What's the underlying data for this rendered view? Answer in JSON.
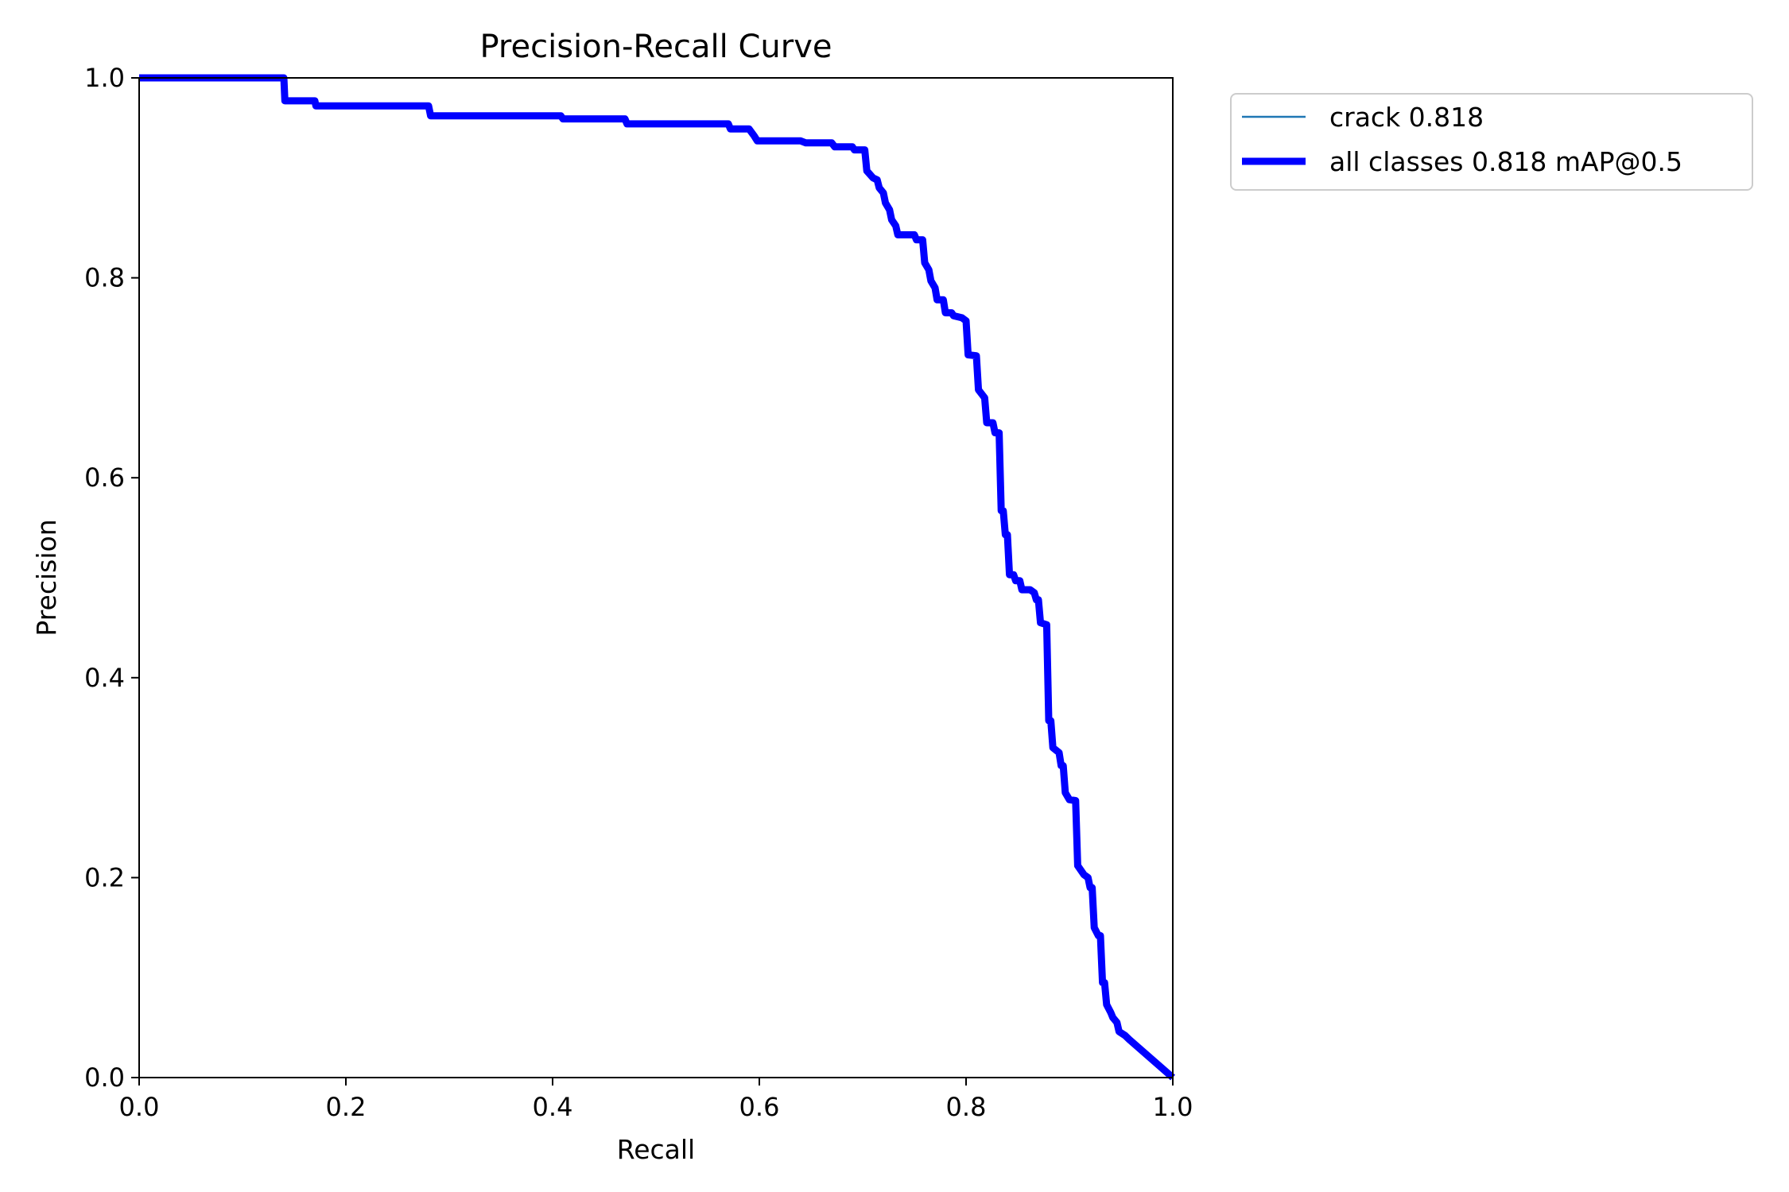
{
  "chart_data": {
    "type": "line",
    "title": "Precision-Recall Curve",
    "xlabel": "Recall",
    "ylabel": "Precision",
    "xlim": [
      0,
      1
    ],
    "ylim": [
      0,
      1
    ],
    "xticks": [
      "0.0",
      "0.2",
      "0.4",
      "0.6",
      "0.8",
      "1.0"
    ],
    "yticks": [
      "0.0",
      "0.2",
      "0.4",
      "0.6",
      "0.8",
      "1.0"
    ],
    "grid": false,
    "legend_placement": "outside top-right",
    "series": [
      {
        "name": "crack 0.818",
        "color": "#1f77b4",
        "points": [
          [
            0.0,
            1.0
          ],
          [
            0.14,
            1.0
          ],
          [
            0.141,
            0.977
          ],
          [
            0.17,
            0.977
          ],
          [
            0.171,
            0.972
          ],
          [
            0.28,
            0.972
          ],
          [
            0.282,
            0.962
          ],
          [
            0.3,
            0.962
          ],
          [
            0.4,
            0.962
          ],
          [
            0.408,
            0.962
          ],
          [
            0.41,
            0.959
          ],
          [
            0.47,
            0.959
          ],
          [
            0.472,
            0.954
          ],
          [
            0.57,
            0.954
          ],
          [
            0.572,
            0.949
          ],
          [
            0.59,
            0.949
          ],
          [
            0.595,
            0.942
          ],
          [
            0.598,
            0.937
          ],
          [
            0.64,
            0.937
          ],
          [
            0.645,
            0.935
          ],
          [
            0.67,
            0.935
          ],
          [
            0.673,
            0.931
          ],
          [
            0.69,
            0.931
          ],
          [
            0.692,
            0.928
          ],
          [
            0.702,
            0.928
          ],
          [
            0.704,
            0.907
          ],
          [
            0.71,
            0.9
          ],
          [
            0.714,
            0.898
          ],
          [
            0.716,
            0.89
          ],
          [
            0.72,
            0.885
          ],
          [
            0.722,
            0.875
          ],
          [
            0.726,
            0.868
          ],
          [
            0.728,
            0.858
          ],
          [
            0.732,
            0.852
          ],
          [
            0.734,
            0.843
          ],
          [
            0.75,
            0.843
          ],
          [
            0.752,
            0.838
          ],
          [
            0.758,
            0.838
          ],
          [
            0.76,
            0.815
          ],
          [
            0.764,
            0.808
          ],
          [
            0.766,
            0.797
          ],
          [
            0.77,
            0.79
          ],
          [
            0.772,
            0.778
          ],
          [
            0.778,
            0.778
          ],
          [
            0.78,
            0.765
          ],
          [
            0.786,
            0.765
          ],
          [
            0.788,
            0.762
          ],
          [
            0.796,
            0.76
          ],
          [
            0.8,
            0.757
          ],
          [
            0.802,
            0.723
          ],
          [
            0.81,
            0.722
          ],
          [
            0.812,
            0.688
          ],
          [
            0.818,
            0.68
          ],
          [
            0.82,
            0.655
          ],
          [
            0.826,
            0.655
          ],
          [
            0.828,
            0.645
          ],
          [
            0.832,
            0.645
          ],
          [
            0.834,
            0.567
          ],
          [
            0.836,
            0.567
          ],
          [
            0.838,
            0.543
          ],
          [
            0.84,
            0.543
          ],
          [
            0.842,
            0.503
          ],
          [
            0.846,
            0.503
          ],
          [
            0.848,
            0.497
          ],
          [
            0.852,
            0.497
          ],
          [
            0.854,
            0.488
          ],
          [
            0.862,
            0.488
          ],
          [
            0.866,
            0.485
          ],
          [
            0.868,
            0.478
          ],
          [
            0.87,
            0.478
          ],
          [
            0.872,
            0.455
          ],
          [
            0.878,
            0.453
          ],
          [
            0.88,
            0.357
          ],
          [
            0.882,
            0.357
          ],
          [
            0.884,
            0.33
          ],
          [
            0.89,
            0.325
          ],
          [
            0.892,
            0.312
          ],
          [
            0.894,
            0.312
          ],
          [
            0.896,
            0.285
          ],
          [
            0.9,
            0.278
          ],
          [
            0.906,
            0.277
          ],
          [
            0.908,
            0.212
          ],
          [
            0.914,
            0.203
          ],
          [
            0.918,
            0.2
          ],
          [
            0.92,
            0.19
          ],
          [
            0.922,
            0.19
          ],
          [
            0.924,
            0.15
          ],
          [
            0.928,
            0.142
          ],
          [
            0.93,
            0.142
          ],
          [
            0.932,
            0.095
          ],
          [
            0.934,
            0.095
          ],
          [
            0.936,
            0.073
          ],
          [
            0.94,
            0.065
          ],
          [
            0.942,
            0.06
          ],
          [
            0.946,
            0.055
          ],
          [
            0.948,
            0.046
          ],
          [
            0.954,
            0.042
          ],
          [
            0.958,
            0.038
          ],
          [
            1.0,
            0.0
          ]
        ]
      },
      {
        "name": "all classes 0.818 mAP@0.5",
        "color": "#0000ff",
        "points": [
          [
            0.0,
            1.0
          ],
          [
            0.14,
            1.0
          ],
          [
            0.141,
            0.977
          ],
          [
            0.17,
            0.977
          ],
          [
            0.171,
            0.972
          ],
          [
            0.28,
            0.972
          ],
          [
            0.282,
            0.962
          ],
          [
            0.3,
            0.962
          ],
          [
            0.4,
            0.962
          ],
          [
            0.408,
            0.962
          ],
          [
            0.41,
            0.959
          ],
          [
            0.47,
            0.959
          ],
          [
            0.472,
            0.954
          ],
          [
            0.57,
            0.954
          ],
          [
            0.572,
            0.949
          ],
          [
            0.59,
            0.949
          ],
          [
            0.595,
            0.942
          ],
          [
            0.598,
            0.937
          ],
          [
            0.64,
            0.937
          ],
          [
            0.645,
            0.935
          ],
          [
            0.67,
            0.935
          ],
          [
            0.673,
            0.931
          ],
          [
            0.69,
            0.931
          ],
          [
            0.692,
            0.928
          ],
          [
            0.702,
            0.928
          ],
          [
            0.704,
            0.907
          ],
          [
            0.71,
            0.9
          ],
          [
            0.714,
            0.898
          ],
          [
            0.716,
            0.89
          ],
          [
            0.72,
            0.885
          ],
          [
            0.722,
            0.875
          ],
          [
            0.726,
            0.868
          ],
          [
            0.728,
            0.858
          ],
          [
            0.732,
            0.852
          ],
          [
            0.734,
            0.843
          ],
          [
            0.75,
            0.843
          ],
          [
            0.752,
            0.838
          ],
          [
            0.758,
            0.838
          ],
          [
            0.76,
            0.815
          ],
          [
            0.764,
            0.808
          ],
          [
            0.766,
            0.797
          ],
          [
            0.77,
            0.79
          ],
          [
            0.772,
            0.778
          ],
          [
            0.778,
            0.778
          ],
          [
            0.78,
            0.765
          ],
          [
            0.786,
            0.765
          ],
          [
            0.788,
            0.762
          ],
          [
            0.796,
            0.76
          ],
          [
            0.8,
            0.757
          ],
          [
            0.802,
            0.723
          ],
          [
            0.81,
            0.722
          ],
          [
            0.812,
            0.688
          ],
          [
            0.818,
            0.68
          ],
          [
            0.82,
            0.655
          ],
          [
            0.826,
            0.655
          ],
          [
            0.828,
            0.645
          ],
          [
            0.832,
            0.645
          ],
          [
            0.834,
            0.567
          ],
          [
            0.836,
            0.567
          ],
          [
            0.838,
            0.543
          ],
          [
            0.84,
            0.543
          ],
          [
            0.842,
            0.503
          ],
          [
            0.846,
            0.503
          ],
          [
            0.848,
            0.497
          ],
          [
            0.852,
            0.497
          ],
          [
            0.854,
            0.488
          ],
          [
            0.862,
            0.488
          ],
          [
            0.866,
            0.485
          ],
          [
            0.868,
            0.478
          ],
          [
            0.87,
            0.478
          ],
          [
            0.872,
            0.455
          ],
          [
            0.878,
            0.453
          ],
          [
            0.88,
            0.357
          ],
          [
            0.882,
            0.357
          ],
          [
            0.884,
            0.33
          ],
          [
            0.89,
            0.325
          ],
          [
            0.892,
            0.312
          ],
          [
            0.894,
            0.312
          ],
          [
            0.896,
            0.285
          ],
          [
            0.9,
            0.278
          ],
          [
            0.906,
            0.277
          ],
          [
            0.908,
            0.212
          ],
          [
            0.914,
            0.203
          ],
          [
            0.918,
            0.2
          ],
          [
            0.92,
            0.19
          ],
          [
            0.922,
            0.19
          ],
          [
            0.924,
            0.15
          ],
          [
            0.928,
            0.142
          ],
          [
            0.93,
            0.142
          ],
          [
            0.932,
            0.095
          ],
          [
            0.934,
            0.095
          ],
          [
            0.936,
            0.073
          ],
          [
            0.94,
            0.065
          ],
          [
            0.942,
            0.06
          ],
          [
            0.946,
            0.055
          ],
          [
            0.948,
            0.046
          ],
          [
            0.954,
            0.042
          ],
          [
            0.958,
            0.038
          ],
          [
            1.0,
            0.0
          ]
        ]
      }
    ]
  }
}
